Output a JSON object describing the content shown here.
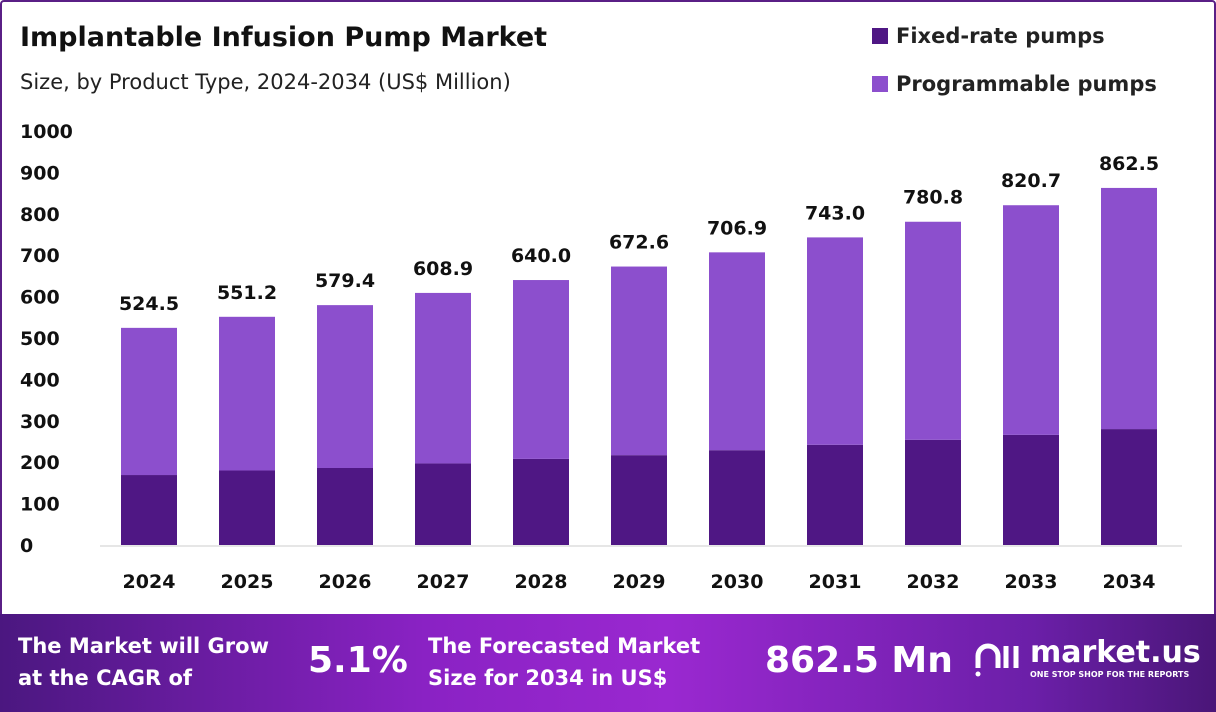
{
  "chart_data": {
    "type": "bar",
    "stacked": true,
    "title": "Implantable Infusion Pump Market",
    "subtitle": "Size, by Product Type, 2024-2034 (US$ Million)",
    "categories": [
      "2024",
      "2025",
      "2026",
      "2027",
      "2028",
      "2029",
      "2030",
      "2031",
      "2032",
      "2033",
      "2034"
    ],
    "series": [
      {
        "name": "Fixed-rate pumps",
        "color": "#4f1784",
        "values": [
          169,
          180,
          186,
          197,
          208,
          217,
          229,
          242,
          254,
          266,
          280
        ]
      },
      {
        "name": "Programmable pumps",
        "color": "#8c4fcd",
        "values": [
          355.5,
          371.2,
          393.4,
          411.9,
          432.0,
          455.6,
          477.9,
          501.0,
          526.8,
          554.7,
          582.5
        ]
      }
    ],
    "totals": [
      "524.5",
      "551.2",
      "579.4",
      "608.9",
      "640.0",
      "672.6",
      "706.9",
      "743.0",
      "780.8",
      "820.7",
      "862.5"
    ],
    "ylim": [
      0,
      1000
    ],
    "yticks": [
      "0",
      "100",
      "200",
      "300",
      "400",
      "500",
      "600",
      "700",
      "800",
      "900",
      "1000"
    ],
    "grid": false,
    "legend": "top-right"
  },
  "footer": {
    "cagr_label_1": "The Market will Grow",
    "cagr_label_2": "at the CAGR of",
    "cagr_value": "5.1%",
    "forecast_label_1": "The Forecasted Market",
    "forecast_label_2": "Size for 2034 in US$",
    "forecast_value": "862.5 Mn",
    "logo_name": "market.us",
    "logo_tagline": "ONE STOP SHOP FOR THE REPORTS"
  }
}
